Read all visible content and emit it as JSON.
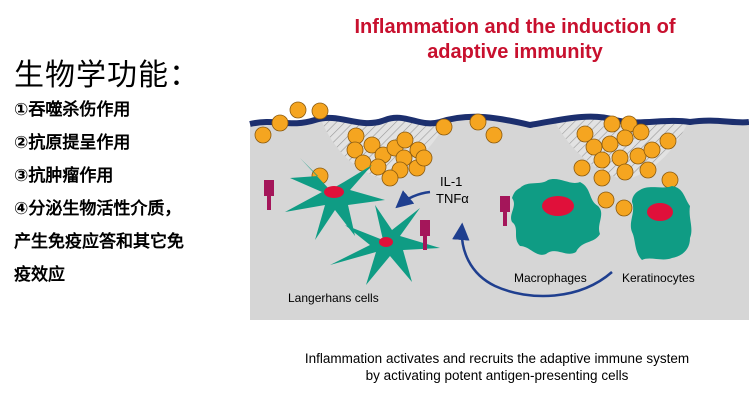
{
  "left": {
    "heading": "生物学功能：",
    "functions": [
      "①吞噬杀伤作用",
      "②抗原提呈作用",
      "③抗肿瘤作用",
      "④分泌生物活性介质，",
      "产生免疫应答和其它免",
      "疫效应"
    ]
  },
  "diagram": {
    "title_line1": "Inflammation and the induction of",
    "title_line2": "adaptive immunity",
    "cytokine_1": "IL-1",
    "cytokine_2": "TNFα",
    "label_langerhans": "Langerhans cells",
    "label_macrophages": "Macrophages",
    "label_keratinocytes": "Keratinocytes",
    "caption_line1": "Inflammation activates and recruits the adaptive immune system",
    "caption_line2": "by activating potent antigen-presenting cells",
    "colors": {
      "title": "#c8102e",
      "tissue": "#d6d6d6",
      "surface": "#1c2f6e",
      "cell": "#0f9c84",
      "nucleus": "#e0103a",
      "particle": "#f5a520",
      "receptor": "#a4165a",
      "arrow": "#1f3f8f"
    }
  }
}
